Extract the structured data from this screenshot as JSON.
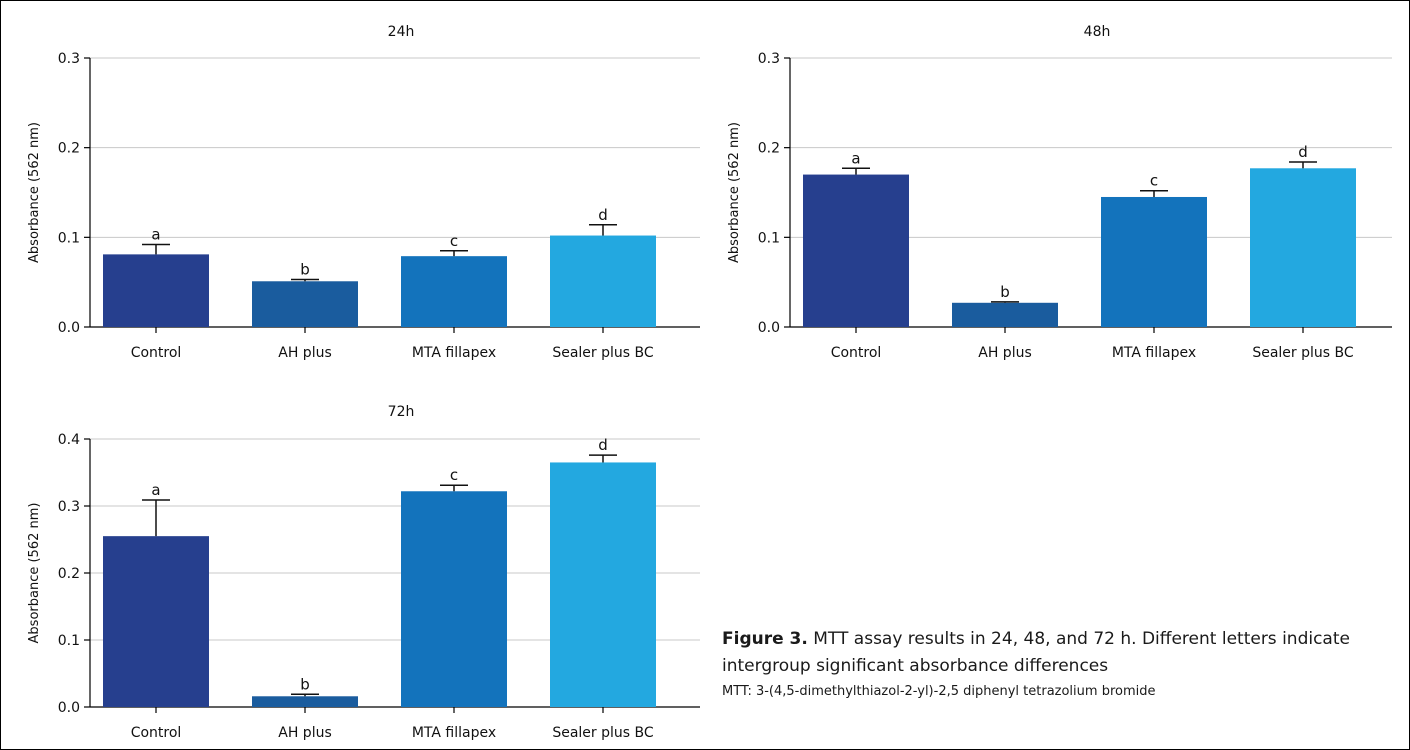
{
  "figure": {
    "caption_label": "Figure 3.",
    "caption_text": "MTT assay results in 24, 48, and 72 h. Different letters indicate intergroup significant absorbance differences",
    "footnote": "MTT: 3-(4,5-dimethylthiazol-2-yl)-2,5 diphenyl tetrazolium bromide"
  },
  "colors": {
    "Control": "#263F8E",
    "AH plus": "#1A5C9E",
    "MTA fillapex": "#1373BC",
    "Sealer plus BC": "#23A8E0",
    "grid": "#C8C8C8",
    "axis": "#000000"
  },
  "chart_data": [
    {
      "type": "bar",
      "title": "24h",
      "ylabel": "Absorbance (562 nm)",
      "xlabel": "",
      "ylim": [
        0,
        0.3
      ],
      "yticks": [
        0.0,
        0.1,
        0.2,
        0.3
      ],
      "ytick_labels": [
        "0.0",
        "0.1",
        "0.2",
        "0.3"
      ],
      "grid": true,
      "categories": [
        "Control",
        "AH plus",
        "MTA fillapex",
        "Sealer plus BC"
      ],
      "values": [
        0.081,
        0.051,
        0.079,
        0.102
      ],
      "errors": [
        0.011,
        0.002,
        0.006,
        0.012
      ],
      "letters": [
        "a",
        "b",
        "c",
        "d"
      ]
    },
    {
      "type": "bar",
      "title": "48h",
      "ylabel": "Absorbance (562 nm)",
      "xlabel": "",
      "ylim": [
        0,
        0.3
      ],
      "yticks": [
        0.0,
        0.1,
        0.2,
        0.3
      ],
      "ytick_labels": [
        "0.0",
        "0.1",
        "0.2",
        "0.3"
      ],
      "grid": true,
      "categories": [
        "Control",
        "AH plus",
        "MTA fillapex",
        "Sealer plus BC"
      ],
      "values": [
        0.17,
        0.027,
        0.145,
        0.177
      ],
      "errors": [
        0.007,
        0.001,
        0.007,
        0.007
      ],
      "letters": [
        "a",
        "b",
        "c",
        "d"
      ]
    },
    {
      "type": "bar",
      "title": "72h",
      "ylabel": "Absorbance (562 nm)",
      "xlabel": "",
      "ylim": [
        0,
        0.4
      ],
      "yticks": [
        0.0,
        0.1,
        0.2,
        0.3,
        0.4
      ],
      "ytick_labels": [
        "0.0",
        "0.1",
        "0.2",
        "0.3",
        "0.4"
      ],
      "grid": true,
      "categories": [
        "Control",
        "AH plus",
        "MTA fillapex",
        "Sealer plus BC"
      ],
      "values": [
        0.255,
        0.016,
        0.322,
        0.365
      ],
      "errors": [
        0.054,
        0.003,
        0.009,
        0.011
      ],
      "letters": [
        "a",
        "b",
        "c",
        "d"
      ]
    }
  ]
}
